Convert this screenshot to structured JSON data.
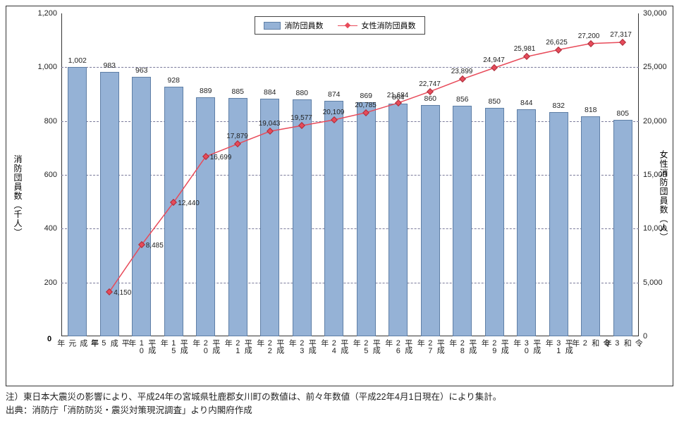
{
  "chart": {
    "type": "bar+line",
    "background_color": "#ffffff",
    "border_color": "#333333",
    "grid_color": "#7a7a9a",
    "categories": [
      "平成元年",
      "平成5年",
      "平成10年",
      "平成15年",
      "平成20年",
      "平成21年",
      "平成22年",
      "平成23年",
      "平成24年",
      "平成25年",
      "平成26年",
      "平成27年",
      "平成28年",
      "平成29年",
      "平成30年",
      "平成31年",
      "令和2年",
      "令和3年"
    ],
    "xtick_fontsize": 11,
    "bar_series": {
      "label": "消防団員数",
      "color": "#95b2d6",
      "border_color": "#5f7fa6",
      "values": [
        1002,
        983,
        963,
        928,
        889,
        885,
        884,
        880,
        874,
        869,
        864,
        860,
        856,
        850,
        844,
        832,
        818,
        805
      ],
      "value_labels": [
        "1,002",
        "983",
        "963",
        "928",
        "889",
        "885",
        "884",
        "880",
        "874",
        "869",
        "864",
        "860",
        "856",
        "850",
        "844",
        "832",
        "818",
        "805"
      ],
      "label_fontsize": 10.5,
      "bar_width_ratio": 0.6
    },
    "line_series": {
      "label": "女性消防団員数",
      "color": "#e84b5a",
      "marker": "diamond",
      "line_width": 1.5,
      "values": [
        null,
        4150,
        8485,
        12440,
        16699,
        17879,
        19043,
        19577,
        20109,
        20785,
        21684,
        22747,
        23899,
        24947,
        25981,
        26625,
        27200,
        27317
      ],
      "value_labels": [
        null,
        "4,150",
        "8,485",
        "12,440",
        "16,699",
        "17,879",
        "19,043",
        "19,577",
        "20,109",
        "20,785",
        "21,684",
        "22,747",
        "23,899",
        "24,947",
        "25,981",
        "26,625",
        "27,200",
        "27,317"
      ],
      "label_fontsize": 10
    },
    "y_left": {
      "label": "消防団員数（千人）",
      "min": 0,
      "max": 1200,
      "step": 200,
      "ticks": [
        0,
        200,
        400,
        600,
        800,
        1000,
        1200
      ],
      "tick_labels": [
        "0",
        "200",
        "400",
        "600",
        "800",
        "1,000",
        "1,200"
      ],
      "fontsize": 11
    },
    "y_right": {
      "label": "女性消防団員数（人）",
      "min": 0,
      "max": 30000,
      "step": 5000,
      "ticks": [
        0,
        5000,
        10000,
        15000,
        20000,
        25000,
        30000
      ],
      "tick_labels": [
        "0",
        "5,000",
        "10,000",
        "15,000",
        "20,000",
        "25,000",
        "30,000"
      ],
      "fontsize": 11
    },
    "legend": {
      "items": [
        {
          "kind": "bar",
          "label": "消防団員数"
        },
        {
          "kind": "line",
          "label": "女性消防団員数"
        }
      ],
      "fontsize": 11,
      "border_color": "#444444"
    },
    "zero_label": "0"
  },
  "notes": {
    "line1": "注）東日本大震災の影響により、平成24年の宮城県牡鹿郡女川町の数値は、前々年数値（平成22年4月1日現在）により集計。",
    "line2": "出典：消防庁「消防防災・震災対策現況調査」より内閣府作成",
    "fontsize": 12.5
  }
}
